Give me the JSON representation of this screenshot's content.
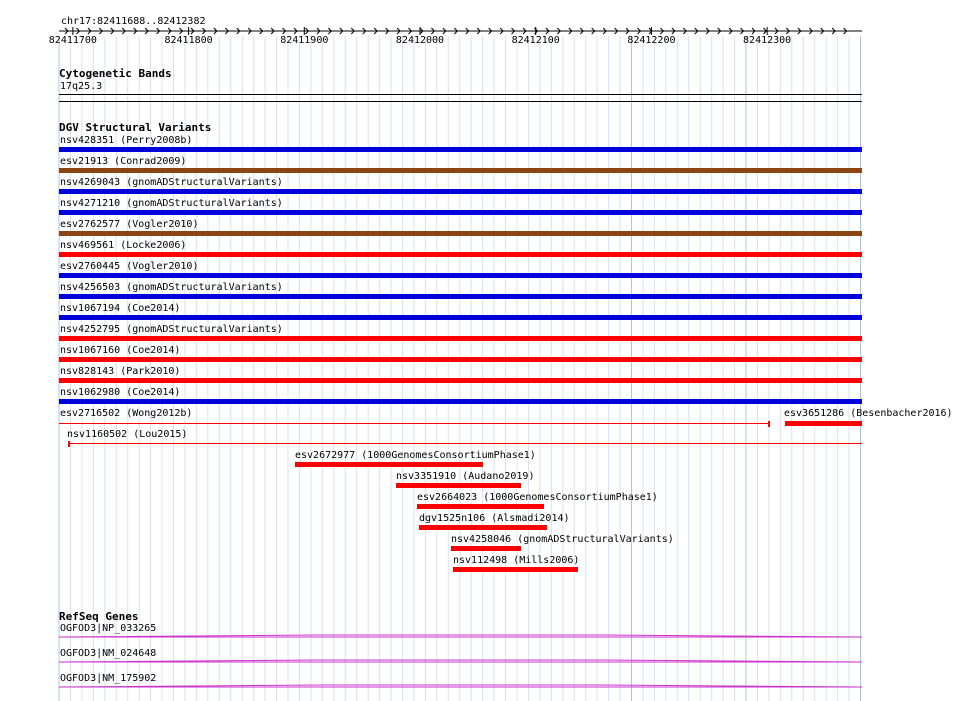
{
  "region": {
    "label": "chr17:82411688..82412382",
    "start": 82411688,
    "end": 82412382,
    "ticks": [
      "82411700",
      "82411800",
      "82411900",
      "82412000",
      "82412100",
      "82412200",
      "82412300"
    ]
  },
  "cytobands": {
    "title": "Cytogenetic Bands",
    "band": "17q25.3"
  },
  "dgv": {
    "title": "DGV Structural Variants",
    "colors": {
      "blue": "#0000dd",
      "brown": "#8b4513",
      "red": "#ff0000"
    },
    "full_tracks": [
      {
        "label": "nsv428351 (Perry2008b)",
        "color": "blue"
      },
      {
        "label": "esv21913 (Conrad2009)",
        "color": "brown"
      },
      {
        "label": "nsv4269043 (gnomADStructuralVariants)",
        "color": "blue"
      },
      {
        "label": "nsv4271210 (gnomADStructuralVariants)",
        "color": "blue"
      },
      {
        "label": "esv2762577 (Vogler2010)",
        "color": "brown"
      },
      {
        "label": "nsv469561 (Locke2006)",
        "color": "red"
      },
      {
        "label": "esv2760445 (Vogler2010)",
        "color": "blue"
      },
      {
        "label": "nsv4256503 (gnomADStructuralVariants)",
        "color": "blue"
      },
      {
        "label": "nsv1067194 (Coe2014)",
        "color": "blue"
      },
      {
        "label": "nsv4252795 (gnomADStructuralVariants)",
        "color": "red"
      },
      {
        "label": "nsv1067160 (Coe2014)",
        "color": "red"
      },
      {
        "label": "nsv828143 (Park2010)",
        "color": "red"
      },
      {
        "label": "nsv1062980 (Coe2014)",
        "color": "blue"
      }
    ],
    "partial_tracks": [
      {
        "label": "esv2716502 (Wong2012b)",
        "type": "thin"
      },
      {
        "label": "esv3651286 (Besenbacher2016)",
        "type": "right"
      },
      {
        "label": "nsv1160502 (Lou2015)",
        "type": "thin"
      },
      {
        "label": "esv2672977 (1000GenomesConsortiumPhase1)"
      },
      {
        "label": "nsv3351910 (Audano2019)"
      },
      {
        "label": "esv2664023 (1000GenomesConsortiumPhase1)"
      },
      {
        "label": "dgv1525n106 (Alsmadi2014)"
      },
      {
        "label": "nsv4258046 (gnomADStructuralVariants)"
      },
      {
        "label": "nsv112498 (Mills2006)"
      }
    ]
  },
  "refseq": {
    "title": "RefSeq Genes",
    "color": "#cc33cc",
    "genes": [
      {
        "label": "OGFOD3|NP_033265"
      },
      {
        "label": "OGFOD3|NM_024648"
      },
      {
        "label": "OGFOD3|NM_175902"
      }
    ]
  }
}
